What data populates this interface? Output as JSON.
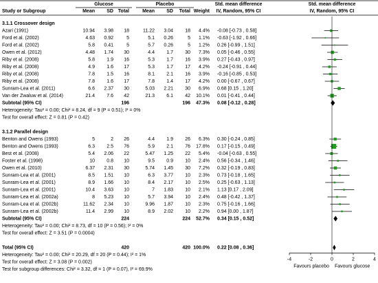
{
  "chart_data": {
    "type": "forest",
    "header": {
      "study": "Study or Subgroup",
      "group1": "Glucose",
      "group2": "Placebo",
      "effect": "Std. mean difference",
      "plot": "Std. mean difference",
      "columns": [
        "Mean",
        "SD",
        "Total",
        "Mean",
        "SD",
        "Total",
        "Weight",
        "IV, Random, 95% CI",
        "IV, Random, 95% CI"
      ]
    },
    "subgroups": [
      {
        "title": "3.1.1 Crossover design",
        "studies": [
          {
            "name": "Azari (1991)",
            "glucose": [
              10.94,
              3.98,
              18
            ],
            "placebo": [
              11.22,
              3.04,
              18
            ],
            "weight": {
              "value": 4.4,
              "label": "4.4%"
            },
            "smd": {
              "value": -0.08,
              "low": -0.73,
              "high": 0.58,
              "label": "-0.08 [-0.73 , 0.58]"
            }
          },
          {
            "name": "Ford et al. (2002)",
            "glucose": [
              4.63,
              0.92,
              5
            ],
            "placebo": [
              5.1,
              0.26,
              5
            ],
            "weight": {
              "value": 1.1,
              "label": "1.1%"
            },
            "smd": {
              "value": -0.63,
              "low": -1.92,
              "high": 0.66,
              "label": "-0.63 [-1.92 , 0.66]"
            }
          },
          {
            "name": "Ford et al. (2002)",
            "glucose": [
              5.8,
              0.41,
              5
            ],
            "placebo": [
              5.7,
              0.26,
              5
            ],
            "weight": {
              "value": 1.2,
              "label": "1.2%"
            },
            "smd": {
              "value": 0.26,
              "low": -0.99,
              "high": 1.51,
              "label": "0.26 [-0.99 , 1.51]"
            }
          },
          {
            "name": "Owen et al. (2012)",
            "glucose": [
              4.48,
              1.74,
              30
            ],
            "placebo": [
              4.4,
              1.7,
              30
            ],
            "weight": {
              "value": 7.3,
              "label": "7.3%"
            },
            "smd": {
              "value": 0.05,
              "low": -0.46,
              "high": 0.55,
              "label": "0.05 [-0.46 , 0.55]"
            }
          },
          {
            "name": "Riby et al. (2008)",
            "glucose": [
              5.8,
              1.9,
              16
            ],
            "placebo": [
              5.3,
              1.7,
              16
            ],
            "weight": {
              "value": 3.9,
              "label": "3.9%"
            },
            "smd": {
              "value": 0.27,
              "low": -0.43,
              "high": 0.97,
              "label": "0.27 [-0.43 , 0.97]"
            }
          },
          {
            "name": "Riby et al. (2008)",
            "glucose": [
              4.9,
              1.6,
              17
            ],
            "placebo": [
              5.3,
              1.7,
              17
            ],
            "weight": {
              "value": 4.2,
              "label": "4.2%"
            },
            "smd": {
              "value": -0.24,
              "low": -0.91,
              "high": 0.44,
              "label": "-0.24 [-0.91 , 0.44]"
            }
          },
          {
            "name": "Riby et al. (2008)",
            "glucose": [
              7.8,
              1.5,
              16
            ],
            "placebo": [
              8.1,
              2.1,
              16
            ],
            "weight": {
              "value": 3.9,
              "label": "3.9%"
            },
            "smd": {
              "value": -0.16,
              "low": -0.85,
              "high": 0.53,
              "label": "-0.16 [-0.85 , 0.53]"
            }
          },
          {
            "name": "Riby et al. (2008)",
            "glucose": [
              7.8,
              1.6,
              17
            ],
            "placebo": [
              7.8,
              1.4,
              17
            ],
            "weight": {
              "value": 4.2,
              "label": "4.2%"
            },
            "smd": {
              "value": 0,
              "low": -0.67,
              "high": 0.67,
              "label": "0.00 [-0.67 , 0.67]"
            }
          },
          {
            "name": "Sunram-Lea et al. (2011)",
            "glucose": [
              6.6,
              2.37,
              30
            ],
            "placebo": [
              5.03,
              2.21,
              30
            ],
            "weight": {
              "value": 6.9,
              "label": "6.9%"
            },
            "smd": {
              "value": 0.68,
              "low": 0.15,
              "high": 1.2,
              "label": "0.68 [0.15 , 1.20]"
            }
          },
          {
            "name": "Van der Zwaluw et al. (2014)",
            "glucose": [
              21.4,
              7.6,
              42
            ],
            "placebo": [
              21.3,
              6.1,
              42
            ],
            "weight": {
              "value": 10.1,
              "label": "10.1%"
            },
            "smd": {
              "value": 0.01,
              "low": -0.41,
              "high": 0.44,
              "label": "0.01 [-0.41 , 0.44]"
            }
          }
        ],
        "subtotal": {
          "name": "Subtotal (95% CI)",
          "glucose_total": 196,
          "placebo_total": 196,
          "weight": {
            "value": 47.3,
            "label": "47.3%"
          },
          "smd": {
            "value": 0.08,
            "low": -0.12,
            "high": 0.28,
            "label": "0.08 [-0.12 , 0.28]"
          }
        },
        "heterogeneity": "Heterogeneity: Tau² = 0.00; Chi² = 8.24, df = 9 (P = 0.51); I² = 0%",
        "overall_effect": "Test for overall effect: Z = 0.81 (P = 0.42)"
      },
      {
        "title": "3.1.2 Parallel design",
        "studies": [
          {
            "name": "Benton and Owens (1993)",
            "glucose": [
              5,
              2,
              26
            ],
            "placebo": [
              4.4,
              1.9,
              26
            ],
            "weight": {
              "value": 6.3,
              "label": "6.3%"
            },
            "smd": {
              "value": 0.3,
              "low": -0.24,
              "high": 0.85,
              "label": "0.30 [-0.24 , 0.85]"
            }
          },
          {
            "name": "Benton and Owens (1993)",
            "glucose": [
              6.3,
              2.5,
              76
            ],
            "placebo": [
              5.9,
              2.1,
              76
            ],
            "weight": {
              "value": 17.8,
              "label": "17.8%"
            },
            "smd": {
              "value": 0.17,
              "low": -0.15,
              "high": 0.49,
              "label": "0.17 [-0.15 , 0.49]"
            }
          },
          {
            "name": "Best et al. (2008)",
            "glucose": [
              5.4,
              2.06,
              22
            ],
            "placebo": [
              5.47,
              1.25,
              22
            ],
            "weight": {
              "value": 5.4,
              "label": "5.4%"
            },
            "smd": {
              "value": -0.04,
              "low": -0.63,
              "high": 0.55,
              "label": "-0.04 [-0.63 , 0.55]"
            }
          },
          {
            "name": "Foster et al. (1998)",
            "glucose": [
              10,
              0.8,
              10
            ],
            "placebo": [
              9.5,
              0.9,
              10
            ],
            "weight": {
              "value": 2.4,
              "label": "2.4%"
            },
            "smd": {
              "value": 0.56,
              "low": -0.34,
              "high": 1.46,
              "label": "0.56 [-0.34 , 1.46]"
            }
          },
          {
            "name": "Owen et al. (2010)",
            "glucose": [
              6.37,
              2.31,
              30
            ],
            "placebo": [
              5.74,
              1.45,
              30
            ],
            "weight": {
              "value": 7.2,
              "label": "7.2%"
            },
            "smd": {
              "value": 0.32,
              "low": -0.19,
              "high": 0.83,
              "label": "0.32 [-0.19 , 0.83]"
            }
          },
          {
            "name": "Sunram-Lea et al. (2001)",
            "glucose": [
              8.5,
              1.51,
              10
            ],
            "placebo": [
              6.3,
              3.77,
              10
            ],
            "weight": {
              "value": 2.3,
              "label": "2.3%"
            },
            "smd": {
              "value": 0.73,
              "low": -0.18,
              "high": 1.65,
              "label": "0.73 [-0.18 , 1.65]"
            }
          },
          {
            "name": "Sunram-Lea et al. (2001)",
            "glucose": [
              8.9,
              1.66,
              10
            ],
            "placebo": [
              8.4,
              2.17,
              10
            ],
            "weight": {
              "value": 2.5,
              "label": "2.5%"
            },
            "smd": {
              "value": 0.25,
              "low": -0.63,
              "high": 1.13,
              "label": "0.25 [-0.63 , 1.13]"
            }
          },
          {
            "name": "Sunram-Lea et al. (2001)",
            "glucose": [
              10.4,
              3.63,
              10
            ],
            "placebo": [
              7,
              1.83,
              10
            ],
            "weight": {
              "value": 2.1,
              "label": "2.1%"
            },
            "smd": {
              "value": 1.13,
              "low": 0.17,
              "high": 2.09,
              "label": "1.13 [0.17 , 2.09]"
            }
          },
          {
            "name": "Sunram-Lea et al. (2002a)",
            "glucose": [
              8,
              5.23,
              10
            ],
            "placebo": [
              5.7,
              3.94,
              10
            ],
            "weight": {
              "value": 2.4,
              "label": "2.4%"
            },
            "smd": {
              "value": 0.48,
              "low": -0.42,
              "high": 1.37,
              "label": "0.48 [-0.42 , 1.37]"
            }
          },
          {
            "name": "Sunram-Lea et al. (2002b)",
            "glucose": [
              11.62,
              2.34,
              10
            ],
            "placebo": [
              9.96,
              1.87,
              10
            ],
            "weight": {
              "value": 2.3,
              "label": "2.3%"
            },
            "smd": {
              "value": 0.75,
              "low": -0.16,
              "high": 1.66,
              "label": "0.75 [-0.16 , 1.66]"
            }
          },
          {
            "name": "Sunram-Lea et al. (2002b)",
            "glucose": [
              11.4,
              2.99,
              10
            ],
            "placebo": [
              8.9,
              2.02,
              10
            ],
            "weight": {
              "value": 2.2,
              "label": "2.2%"
            },
            "smd": {
              "value": 0.94,
              "low": 0,
              "high": 1.87,
              "label": "0.94 [0.00 , 1.87]"
            }
          }
        ],
        "subtotal": {
          "name": "Subtotal (95% CI)",
          "glucose_total": 224,
          "placebo_total": 224,
          "weight": {
            "value": 52.7,
            "label": "52.7%"
          },
          "smd": {
            "value": 0.34,
            "low": 0.15,
            "high": 0.52,
            "label": "0.34 [0.15 , 0.52]"
          }
        },
        "heterogeneity": "Heterogeneity: Tau² = 0.00; Chi² = 8.73, df = 10 (P = 0.56); I² = 0%",
        "overall_effect": "Test for overall effect: Z = 3.51 (P = 0.0004)"
      }
    ],
    "total": {
      "name": "Total (95% CI)",
      "glucose_total": 420,
      "placebo_total": 420,
      "weight": {
        "value": 100,
        "label": "100.0%"
      },
      "smd": {
        "value": 0.22,
        "low": 0.08,
        "high": 0.36,
        "label": "0.22 [0.08 , 0.36]"
      },
      "heterogeneity": "Heterogeneity: Tau² = 0.00; Chi² = 20.29, df = 20 (P = 0.44); I² = 1%",
      "overall_effect": "Test for overall effect: Z = 3.08 (P = 0.002)",
      "subgroup_differences": "Test for subgroup differences: Chi² = 3.32, df = 1 (P = 0.07), I² = 69.9%"
    },
    "xlim": [
      -4,
      4
    ],
    "xticks": [
      -4,
      -2,
      0,
      2,
      4
    ],
    "left_label": "Favours placebo",
    "right_label": "Favours glucose",
    "square_color": "#1f9e1f"
  }
}
